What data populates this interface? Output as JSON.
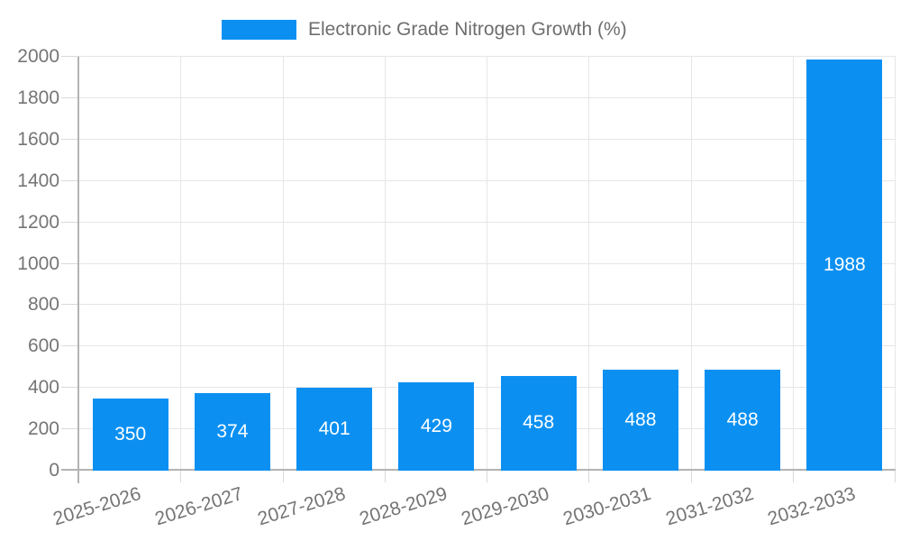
{
  "legend": {
    "label": "Electronic Grade Nitrogen Growth (%)"
  },
  "chart_data": {
    "type": "bar",
    "title": "Electronic Grade Nitrogen Growth (%)",
    "categories": [
      "2025-2026",
      "2026-2027",
      "2027-2028",
      "2028-2029",
      "2029-2030",
      "2030-2031",
      "2031-2032",
      "2032-2033"
    ],
    "values": [
      350,
      374,
      401,
      429,
      458,
      488,
      488,
      1988
    ],
    "xlabel": "",
    "ylabel": "",
    "ylim": [
      0,
      2000
    ],
    "yticks": [
      0,
      200,
      400,
      600,
      800,
      1000,
      1200,
      1400,
      1600,
      1800,
      2000
    ],
    "grid": true,
    "legend_position": "top-center",
    "value_labels": "inside-center",
    "x_label_rotation_deg": -17,
    "colors": {
      "bar": "#0b90f2",
      "grid": "#e6e6e6",
      "tick": "#d9d9d9",
      "axis": "#b3b3b3",
      "tick_label": "#757575",
      "legend_text": "#6e6e6e",
      "value_label": "#ffffff",
      "background": "#ffffff"
    }
  }
}
